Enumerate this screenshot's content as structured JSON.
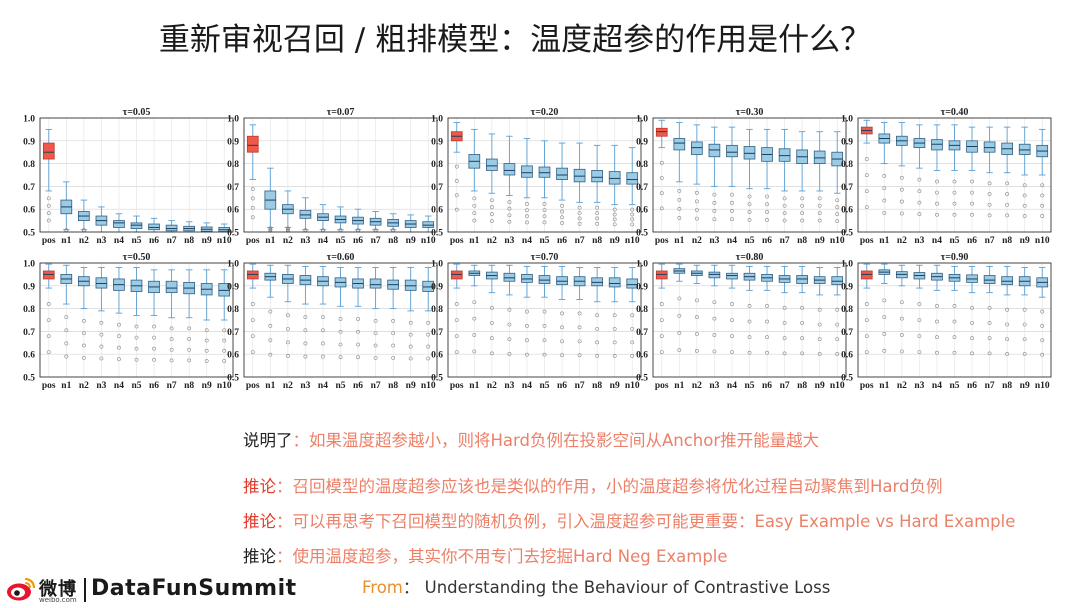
{
  "title": "重新审视召回 / 粗排模型：温度超参的作用是什么？",
  "chart_data": {
    "type": "boxplot",
    "categories": [
      "pos",
      "n1",
      "n2",
      "n3",
      "n4",
      "n5",
      "n6",
      "n7",
      "n8",
      "n9",
      "n10"
    ],
    "ylim": [
      0.5,
      1.0
    ],
    "yticks": [
      "0.5",
      "0.6",
      "0.7",
      "0.8",
      "0.9",
      "1.0"
    ],
    "grid": true,
    "colors": {
      "pos": "#f0584a",
      "neg": "#9ccbe6",
      "neg_edge": "#2f5f82",
      "pos_edge": "#c0392b",
      "whisker": "#5a9fd4",
      "flier": "#888888"
    },
    "panels": [
      {
        "title": "τ=0.05",
        "boxes": [
          {
            "q1": 0.82,
            "med": 0.85,
            "q3": 0.89,
            "lo": 0.68,
            "hi": 0.95
          },
          {
            "q1": 0.58,
            "med": 0.61,
            "q3": 0.64,
            "lo": 0.51,
            "hi": 0.72
          },
          {
            "q1": 0.55,
            "med": 0.57,
            "q3": 0.59,
            "lo": 0.51,
            "hi": 0.64
          },
          {
            "q1": 0.53,
            "med": 0.55,
            "q3": 0.57,
            "lo": 0.5,
            "hi": 0.61
          },
          {
            "q1": 0.52,
            "med": 0.54,
            "q3": 0.55,
            "lo": 0.5,
            "hi": 0.58
          },
          {
            "q1": 0.515,
            "med": 0.53,
            "q3": 0.54,
            "lo": 0.5,
            "hi": 0.57
          },
          {
            "q1": 0.51,
            "med": 0.52,
            "q3": 0.535,
            "lo": 0.5,
            "hi": 0.56
          },
          {
            "q1": 0.505,
            "med": 0.515,
            "q3": 0.53,
            "lo": 0.5,
            "hi": 0.55
          },
          {
            "q1": 0.505,
            "med": 0.515,
            "q3": 0.525,
            "lo": 0.5,
            "hi": 0.545
          },
          {
            "q1": 0.503,
            "med": 0.512,
            "q3": 0.522,
            "lo": 0.5,
            "hi": 0.54
          },
          {
            "q1": 0.502,
            "med": 0.51,
            "q3": 0.52,
            "lo": 0.5,
            "hi": 0.535
          }
        ]
      },
      {
        "title": "τ=0.07",
        "boxes": [
          {
            "q1": 0.85,
            "med": 0.88,
            "q3": 0.92,
            "lo": 0.73,
            "hi": 0.97
          },
          {
            "q1": 0.6,
            "med": 0.64,
            "q3": 0.68,
            "lo": 0.52,
            "hi": 0.78
          },
          {
            "q1": 0.58,
            "med": 0.6,
            "q3": 0.62,
            "lo": 0.52,
            "hi": 0.68
          },
          {
            "q1": 0.56,
            "med": 0.575,
            "q3": 0.595,
            "lo": 0.51,
            "hi": 0.65
          },
          {
            "q1": 0.55,
            "med": 0.565,
            "q3": 0.58,
            "lo": 0.51,
            "hi": 0.62
          },
          {
            "q1": 0.54,
            "med": 0.555,
            "q3": 0.57,
            "lo": 0.51,
            "hi": 0.61
          },
          {
            "q1": 0.535,
            "med": 0.55,
            "q3": 0.565,
            "lo": 0.51,
            "hi": 0.6
          },
          {
            "q1": 0.53,
            "med": 0.545,
            "q3": 0.56,
            "lo": 0.51,
            "hi": 0.59
          },
          {
            "q1": 0.525,
            "med": 0.54,
            "q3": 0.555,
            "lo": 0.51,
            "hi": 0.58
          },
          {
            "q1": 0.52,
            "med": 0.535,
            "q3": 0.55,
            "lo": 0.5,
            "hi": 0.575
          },
          {
            "q1": 0.52,
            "med": 0.53,
            "q3": 0.545,
            "lo": 0.5,
            "hi": 0.57
          }
        ]
      },
      {
        "title": "τ=0.20",
        "boxes": [
          {
            "q1": 0.9,
            "med": 0.92,
            "q3": 0.94,
            "lo": 0.85,
            "hi": 0.98
          },
          {
            "q1": 0.78,
            "med": 0.81,
            "q3": 0.84,
            "lo": 0.68,
            "hi": 0.95
          },
          {
            "q1": 0.77,
            "med": 0.79,
            "q3": 0.82,
            "lo": 0.67,
            "hi": 0.93
          },
          {
            "q1": 0.75,
            "med": 0.77,
            "q3": 0.8,
            "lo": 0.66,
            "hi": 0.92
          },
          {
            "q1": 0.74,
            "med": 0.76,
            "q3": 0.79,
            "lo": 0.65,
            "hi": 0.91
          },
          {
            "q1": 0.74,
            "med": 0.76,
            "q3": 0.785,
            "lo": 0.65,
            "hi": 0.9
          },
          {
            "q1": 0.73,
            "med": 0.75,
            "q3": 0.78,
            "lo": 0.64,
            "hi": 0.89
          },
          {
            "q1": 0.72,
            "med": 0.745,
            "q3": 0.775,
            "lo": 0.63,
            "hi": 0.89
          },
          {
            "q1": 0.72,
            "med": 0.74,
            "q3": 0.77,
            "lo": 0.63,
            "hi": 0.88
          },
          {
            "q1": 0.71,
            "med": 0.735,
            "q3": 0.765,
            "lo": 0.62,
            "hi": 0.88
          },
          {
            "q1": 0.71,
            "med": 0.73,
            "q3": 0.76,
            "lo": 0.62,
            "hi": 0.87
          }
        ]
      },
      {
        "title": "τ=0.30",
        "boxes": [
          {
            "q1": 0.92,
            "med": 0.94,
            "q3": 0.955,
            "lo": 0.87,
            "hi": 0.99
          },
          {
            "q1": 0.86,
            "med": 0.89,
            "q3": 0.91,
            "lo": 0.72,
            "hi": 0.98
          },
          {
            "q1": 0.84,
            "med": 0.87,
            "q3": 0.895,
            "lo": 0.71,
            "hi": 0.97
          },
          {
            "q1": 0.83,
            "med": 0.86,
            "q3": 0.885,
            "lo": 0.7,
            "hi": 0.96
          },
          {
            "q1": 0.83,
            "med": 0.85,
            "q3": 0.88,
            "lo": 0.7,
            "hi": 0.96
          },
          {
            "q1": 0.82,
            "med": 0.845,
            "q3": 0.875,
            "lo": 0.69,
            "hi": 0.95
          },
          {
            "q1": 0.81,
            "med": 0.84,
            "q3": 0.87,
            "lo": 0.69,
            "hi": 0.95
          },
          {
            "q1": 0.81,
            "med": 0.835,
            "q3": 0.865,
            "lo": 0.68,
            "hi": 0.95
          },
          {
            "q1": 0.8,
            "med": 0.83,
            "q3": 0.86,
            "lo": 0.68,
            "hi": 0.94
          },
          {
            "q1": 0.8,
            "med": 0.825,
            "q3": 0.855,
            "lo": 0.68,
            "hi": 0.94
          },
          {
            "q1": 0.79,
            "med": 0.82,
            "q3": 0.85,
            "lo": 0.67,
            "hi": 0.94
          }
        ]
      },
      {
        "title": "τ=0.40",
        "boxes": [
          {
            "q1": 0.93,
            "med": 0.945,
            "q3": 0.96,
            "lo": 0.89,
            "hi": 0.99
          },
          {
            "q1": 0.89,
            "med": 0.91,
            "q3": 0.93,
            "lo": 0.8,
            "hi": 0.98
          },
          {
            "q1": 0.88,
            "med": 0.9,
            "q3": 0.92,
            "lo": 0.79,
            "hi": 0.98
          },
          {
            "q1": 0.87,
            "med": 0.89,
            "q3": 0.91,
            "lo": 0.78,
            "hi": 0.97
          },
          {
            "q1": 0.86,
            "med": 0.885,
            "q3": 0.905,
            "lo": 0.77,
            "hi": 0.97
          },
          {
            "q1": 0.86,
            "med": 0.88,
            "q3": 0.9,
            "lo": 0.77,
            "hi": 0.97
          },
          {
            "q1": 0.85,
            "med": 0.875,
            "q3": 0.9,
            "lo": 0.77,
            "hi": 0.96
          },
          {
            "q1": 0.85,
            "med": 0.87,
            "q3": 0.895,
            "lo": 0.76,
            "hi": 0.96
          },
          {
            "q1": 0.84,
            "med": 0.865,
            "q3": 0.89,
            "lo": 0.76,
            "hi": 0.96
          },
          {
            "q1": 0.84,
            "med": 0.86,
            "q3": 0.885,
            "lo": 0.75,
            "hi": 0.96
          },
          {
            "q1": 0.83,
            "med": 0.855,
            "q3": 0.88,
            "lo": 0.75,
            "hi": 0.95
          }
        ]
      },
      {
        "title": "τ=0.50",
        "boxes": [
          {
            "q1": 0.93,
            "med": 0.95,
            "q3": 0.965,
            "lo": 0.89,
            "hi": 0.995
          },
          {
            "q1": 0.91,
            "med": 0.93,
            "q3": 0.95,
            "lo": 0.82,
            "hi": 0.99
          },
          {
            "q1": 0.9,
            "med": 0.92,
            "q3": 0.94,
            "lo": 0.8,
            "hi": 0.98
          },
          {
            "q1": 0.89,
            "med": 0.91,
            "q3": 0.935,
            "lo": 0.79,
            "hi": 0.98
          },
          {
            "q1": 0.88,
            "med": 0.905,
            "q3": 0.93,
            "lo": 0.78,
            "hi": 0.98
          },
          {
            "q1": 0.875,
            "med": 0.9,
            "q3": 0.925,
            "lo": 0.77,
            "hi": 0.98
          },
          {
            "q1": 0.87,
            "med": 0.895,
            "q3": 0.92,
            "lo": 0.77,
            "hi": 0.97
          },
          {
            "q1": 0.87,
            "med": 0.89,
            "q3": 0.92,
            "lo": 0.76,
            "hi": 0.97
          },
          {
            "q1": 0.865,
            "med": 0.89,
            "q3": 0.915,
            "lo": 0.76,
            "hi": 0.97
          },
          {
            "q1": 0.86,
            "med": 0.885,
            "q3": 0.91,
            "lo": 0.75,
            "hi": 0.97
          },
          {
            "q1": 0.855,
            "med": 0.88,
            "q3": 0.91,
            "lo": 0.75,
            "hi": 0.97
          }
        ]
      },
      {
        "title": "τ=0.60",
        "boxes": [
          {
            "q1": 0.93,
            "med": 0.95,
            "q3": 0.965,
            "lo": 0.89,
            "hi": 0.995
          },
          {
            "q1": 0.925,
            "med": 0.94,
            "q3": 0.955,
            "lo": 0.85,
            "hi": 0.99
          },
          {
            "q1": 0.91,
            "med": 0.93,
            "q3": 0.95,
            "lo": 0.83,
            "hi": 0.99
          },
          {
            "q1": 0.905,
            "med": 0.925,
            "q3": 0.945,
            "lo": 0.82,
            "hi": 0.985
          },
          {
            "q1": 0.9,
            "med": 0.92,
            "q3": 0.94,
            "lo": 0.82,
            "hi": 0.985
          },
          {
            "q1": 0.895,
            "med": 0.915,
            "q3": 0.935,
            "lo": 0.81,
            "hi": 0.98
          },
          {
            "q1": 0.89,
            "med": 0.91,
            "q3": 0.93,
            "lo": 0.81,
            "hi": 0.98
          },
          {
            "q1": 0.89,
            "med": 0.905,
            "q3": 0.93,
            "lo": 0.8,
            "hi": 0.98
          },
          {
            "q1": 0.885,
            "med": 0.905,
            "q3": 0.925,
            "lo": 0.8,
            "hi": 0.98
          },
          {
            "q1": 0.88,
            "med": 0.9,
            "q3": 0.925,
            "lo": 0.79,
            "hi": 0.98
          },
          {
            "q1": 0.875,
            "med": 0.895,
            "q3": 0.92,
            "lo": 0.79,
            "hi": 0.98
          }
        ]
      },
      {
        "title": "τ=0.70",
        "boxes": [
          {
            "q1": 0.93,
            "med": 0.95,
            "q3": 0.965,
            "lo": 0.89,
            "hi": 0.995
          },
          {
            "q1": 0.945,
            "med": 0.955,
            "q3": 0.965,
            "lo": 0.9,
            "hi": 0.99
          },
          {
            "q1": 0.93,
            "med": 0.945,
            "q3": 0.96,
            "lo": 0.87,
            "hi": 0.99
          },
          {
            "q1": 0.92,
            "med": 0.935,
            "q3": 0.955,
            "lo": 0.86,
            "hi": 0.99
          },
          {
            "q1": 0.915,
            "med": 0.93,
            "q3": 0.95,
            "lo": 0.85,
            "hi": 0.985
          },
          {
            "q1": 0.91,
            "med": 0.925,
            "q3": 0.945,
            "lo": 0.85,
            "hi": 0.985
          },
          {
            "q1": 0.905,
            "med": 0.92,
            "q3": 0.94,
            "lo": 0.84,
            "hi": 0.985
          },
          {
            "q1": 0.9,
            "med": 0.92,
            "q3": 0.94,
            "lo": 0.84,
            "hi": 0.98
          },
          {
            "q1": 0.9,
            "med": 0.915,
            "q3": 0.935,
            "lo": 0.83,
            "hi": 0.98
          },
          {
            "q1": 0.895,
            "med": 0.91,
            "q3": 0.935,
            "lo": 0.83,
            "hi": 0.98
          },
          {
            "q1": 0.89,
            "med": 0.905,
            "q3": 0.93,
            "lo": 0.83,
            "hi": 0.98
          }
        ]
      },
      {
        "title": "τ=0.80",
        "boxes": [
          {
            "q1": 0.93,
            "med": 0.95,
            "q3": 0.965,
            "lo": 0.89,
            "hi": 0.995
          },
          {
            "q1": 0.955,
            "med": 0.965,
            "q3": 0.975,
            "lo": 0.92,
            "hi": 0.995
          },
          {
            "q1": 0.945,
            "med": 0.955,
            "q3": 0.965,
            "lo": 0.91,
            "hi": 0.99
          },
          {
            "q1": 0.935,
            "med": 0.95,
            "q3": 0.96,
            "lo": 0.9,
            "hi": 0.99
          },
          {
            "q1": 0.93,
            "med": 0.945,
            "q3": 0.955,
            "lo": 0.89,
            "hi": 0.99
          },
          {
            "q1": 0.925,
            "med": 0.94,
            "q3": 0.955,
            "lo": 0.88,
            "hi": 0.985
          },
          {
            "q1": 0.92,
            "med": 0.935,
            "q3": 0.95,
            "lo": 0.88,
            "hi": 0.985
          },
          {
            "q1": 0.915,
            "med": 0.93,
            "q3": 0.945,
            "lo": 0.87,
            "hi": 0.985
          },
          {
            "q1": 0.91,
            "med": 0.93,
            "q3": 0.945,
            "lo": 0.87,
            "hi": 0.985
          },
          {
            "q1": 0.91,
            "med": 0.925,
            "q3": 0.94,
            "lo": 0.86,
            "hi": 0.98
          },
          {
            "q1": 0.905,
            "med": 0.92,
            "q3": 0.94,
            "lo": 0.86,
            "hi": 0.98
          }
        ]
      },
      {
        "title": "τ=0.90",
        "boxes": [
          {
            "q1": 0.93,
            "med": 0.95,
            "q3": 0.965,
            "lo": 0.89,
            "hi": 0.995
          },
          {
            "q1": 0.95,
            "med": 0.96,
            "q3": 0.97,
            "lo": 0.91,
            "hi": 0.995
          },
          {
            "q1": 0.935,
            "med": 0.95,
            "q3": 0.962,
            "lo": 0.9,
            "hi": 0.99
          },
          {
            "q1": 0.93,
            "med": 0.945,
            "q3": 0.958,
            "lo": 0.89,
            "hi": 0.99
          },
          {
            "q1": 0.925,
            "med": 0.94,
            "q3": 0.955,
            "lo": 0.88,
            "hi": 0.99
          },
          {
            "q1": 0.92,
            "med": 0.935,
            "q3": 0.95,
            "lo": 0.88,
            "hi": 0.985
          },
          {
            "q1": 0.915,
            "med": 0.93,
            "q3": 0.948,
            "lo": 0.87,
            "hi": 0.985
          },
          {
            "q1": 0.91,
            "med": 0.925,
            "q3": 0.945,
            "lo": 0.87,
            "hi": 0.985
          },
          {
            "q1": 0.905,
            "med": 0.92,
            "q3": 0.94,
            "lo": 0.86,
            "hi": 0.985
          },
          {
            "q1": 0.9,
            "med": 0.92,
            "q3": 0.94,
            "lo": 0.86,
            "hi": 0.98
          },
          {
            "q1": 0.895,
            "med": 0.915,
            "q3": 0.935,
            "lo": 0.85,
            "hi": 0.98
          }
        ]
      }
    ]
  },
  "notes": [
    {
      "label": "说明了",
      "label_color": "black",
      "text": "：如果温度超参越小，则将Hard负例在投影空间从Anchor推开能量越大"
    },
    {
      "label": "推论",
      "label_color": "red",
      "text": "：召回模型的温度超参应该也是类似的作用，小的温度超参将优化过程自动聚焦到Hard负例"
    },
    {
      "label": "推论",
      "label_color": "red",
      "text": "：可以再思考下召回模型的随机负例，引入温度超参可能更重要：Easy Example vs Hard Example"
    },
    {
      "label": "推论",
      "label_color": "black",
      "text": "：使用温度超参，其实你不用专门去挖掘Hard Neg Example"
    }
  ],
  "footer": {
    "weibo_text": "微博",
    "weibo_url": "weibo.com",
    "brand": "DataFunSummit",
    "from_label": "From",
    "from_text": "：  Understanding the Behaviour of Contrastive Loss"
  }
}
